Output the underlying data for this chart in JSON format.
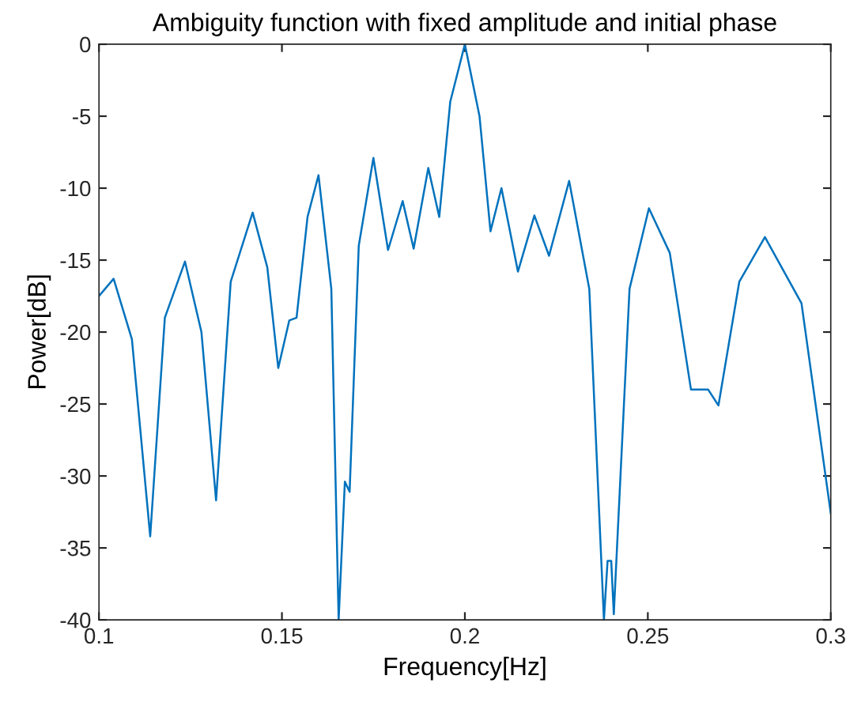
{
  "chart_data": {
    "type": "line",
    "title": "Ambiguity function with fixed amplitude and initial phase",
    "xlabel": "Frequency[Hz]",
    "ylabel": "Power[dB]",
    "series": [
      {
        "color": "#0072bd",
        "x": [
          0.1,
          0.104,
          0.109,
          0.114,
          0.118,
          0.1235,
          0.128,
          0.132,
          0.136,
          0.142,
          0.146,
          0.149,
          0.152,
          0.154,
          0.157,
          0.16,
          0.1635,
          0.1655,
          0.1672,
          0.1685,
          0.171,
          0.175,
          0.179,
          0.183,
          0.186,
          0.19,
          0.193,
          0.196,
          0.2,
          0.204,
          0.207,
          0.21,
          0.2145,
          0.219,
          0.223,
          0.2285,
          0.234,
          0.238,
          0.239,
          0.24,
          0.2407,
          0.245,
          0.2503,
          0.256,
          0.2618,
          0.2665,
          0.2693,
          0.275,
          0.282,
          0.292,
          0.3
        ],
        "values": [
          -17.5,
          -16.3,
          -20.5,
          -34.2,
          -19,
          -15.1,
          -20,
          -31.7,
          -16.5,
          -11.7,
          -15.5,
          -22.5,
          -19.2,
          -19.0,
          -12,
          -9.1,
          -17,
          -40,
          -30.4,
          -31.1,
          -14,
          -7.9,
          -14.3,
          -10.9,
          -14.2,
          -8.6,
          -12.0,
          -4,
          0,
          -5,
          -13.0,
          -10.0,
          -15.8,
          -11.9,
          -14.7,
          -9.5,
          -17,
          -40,
          -35.9,
          -35.9,
          -39.6,
          -17,
          -11.4,
          -14.5,
          -24,
          -24.0,
          -25.1,
          -16.5,
          -13.4,
          -18,
          -32.6
        ]
      }
    ],
    "xlim": [
      0.1,
      0.3
    ],
    "ylim": [
      -40,
      0
    ],
    "xticks": [
      0.1,
      0.15,
      0.2,
      0.25,
      0.3
    ],
    "yticks": [
      -40,
      -35,
      -30,
      -25,
      -20,
      -15,
      -10,
      -5,
      0
    ],
    "grid": false,
    "legend": false
  }
}
